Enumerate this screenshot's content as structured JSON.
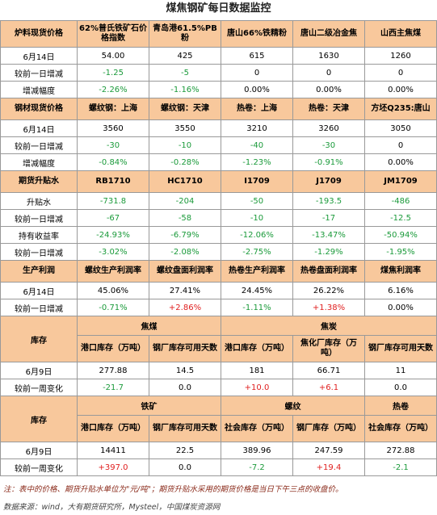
{
  "title": "煤焦钢矿每日数据监控",
  "sections": [
    {
      "header": [
        "炉料现货价格",
        "62%普氏铁矿石价格指数",
        "青岛港61.5%PB粉",
        "唐山66%铁精粉",
        "唐山二级冶金焦",
        "山西主焦煤"
      ],
      "rows": [
        [
          "6月14日",
          "54.00",
          "425",
          "615",
          "1630",
          "1260"
        ],
        [
          "较前一日增减",
          "-1.25",
          "-5",
          "0",
          "0",
          "0"
        ],
        [
          "增减幅度",
          "-2.26%",
          "-1.16%",
          "0.00%",
          "0.00%",
          "0.00%"
        ]
      ]
    },
    {
      "header": [
        "钢材现货价格",
        "螺纹钢：上海",
        "螺纹钢：天津",
        "热卷：上海",
        "热卷：天津",
        "方坯Q235:唐山"
      ],
      "rows": [
        [
          "6月14日",
          "3560",
          "3550",
          "3210",
          "3260",
          "3050"
        ],
        [
          "较前一日增减",
          "-30",
          "-10",
          "-40",
          "-30",
          "0"
        ],
        [
          "增减幅度",
          "-0.84%",
          "-0.28%",
          "-1.23%",
          "-0.91%",
          "0.00%"
        ]
      ]
    },
    {
      "header": [
        "期货升贴水",
        "RB1710",
        "HC1710",
        "I1709",
        "J1709",
        "JM1709"
      ],
      "rows": [
        [
          "升贴水",
          "-731.8",
          "-204",
          "-50",
          "-193.5",
          "-486"
        ],
        [
          "较前一日增减",
          "-67",
          "-58",
          "-10",
          "-17",
          "-12.5"
        ],
        [
          "持有收益率",
          "-24.93%",
          "-6.79%",
          "-12.06%",
          "-13.47%",
          "-50.94%"
        ],
        [
          "较前一日增减",
          "-3.02%",
          "-2.08%",
          "-2.75%",
          "-1.29%",
          "-1.95%"
        ]
      ]
    },
    {
      "header": [
        "生产利润",
        "螺纹生产利润率",
        "螺纹盘面利润率",
        "热卷生产利润率",
        "热卷盘面利润率",
        "煤焦利润率"
      ],
      "rows": [
        [
          "6月14日",
          "45.06%",
          "27.41%",
          "24.45%",
          "26.22%",
          "6.16%"
        ],
        [
          "较前一日增减",
          "-0.71%",
          "+2.86%",
          "-1.11%",
          "+1.38%",
          "0.00%"
        ]
      ]
    },
    {
      "label": "库存",
      "groups": [
        {
          "name": "焦煤",
          "columns": [
            "港口库存（万吨）",
            "钢厂库存可用天数"
          ]
        },
        {
          "name": "焦炭",
          "columns": [
            "港口库存（万吨）",
            "焦化厂库存（万吨）",
            "钢厂库存可用天数"
          ]
        }
      ],
      "rows": [
        [
          "6月9日",
          "277.88",
          "14.5",
          "181",
          "66.71",
          "11"
        ],
        [
          "较前一周变化",
          "-21.7",
          "0.0",
          "+10.0",
          "+6.1",
          "0.0"
        ]
      ]
    },
    {
      "label": "库存",
      "groups": [
        {
          "name": "铁矿",
          "columns": [
            "港口库存（万吨）",
            "钢厂库存可用天数"
          ]
        },
        {
          "name": "螺纹",
          "columns": [
            "社会库存（万吨）",
            "钢厂库存（万吨）"
          ]
        },
        {
          "name": "热卷",
          "columns": [
            "社会库存（万吨）"
          ]
        }
      ],
      "rows": [
        [
          "6月9日",
          "14411",
          "22.5",
          "389.96",
          "247.59",
          "272.88"
        ],
        [
          "较前一周变化",
          "+397.0",
          "0.0",
          "-7.2",
          "+19.4",
          "-2.1"
        ]
      ]
    }
  ],
  "footnote": "注：表中的价格、期货升贴水单位为\"元/吨\"；期货升贴水采用的期货价格是当日下午三点的收盘价。",
  "source": "数据来源：wind，大有期货研究所，Mysteel，中国煤炭资源网"
}
